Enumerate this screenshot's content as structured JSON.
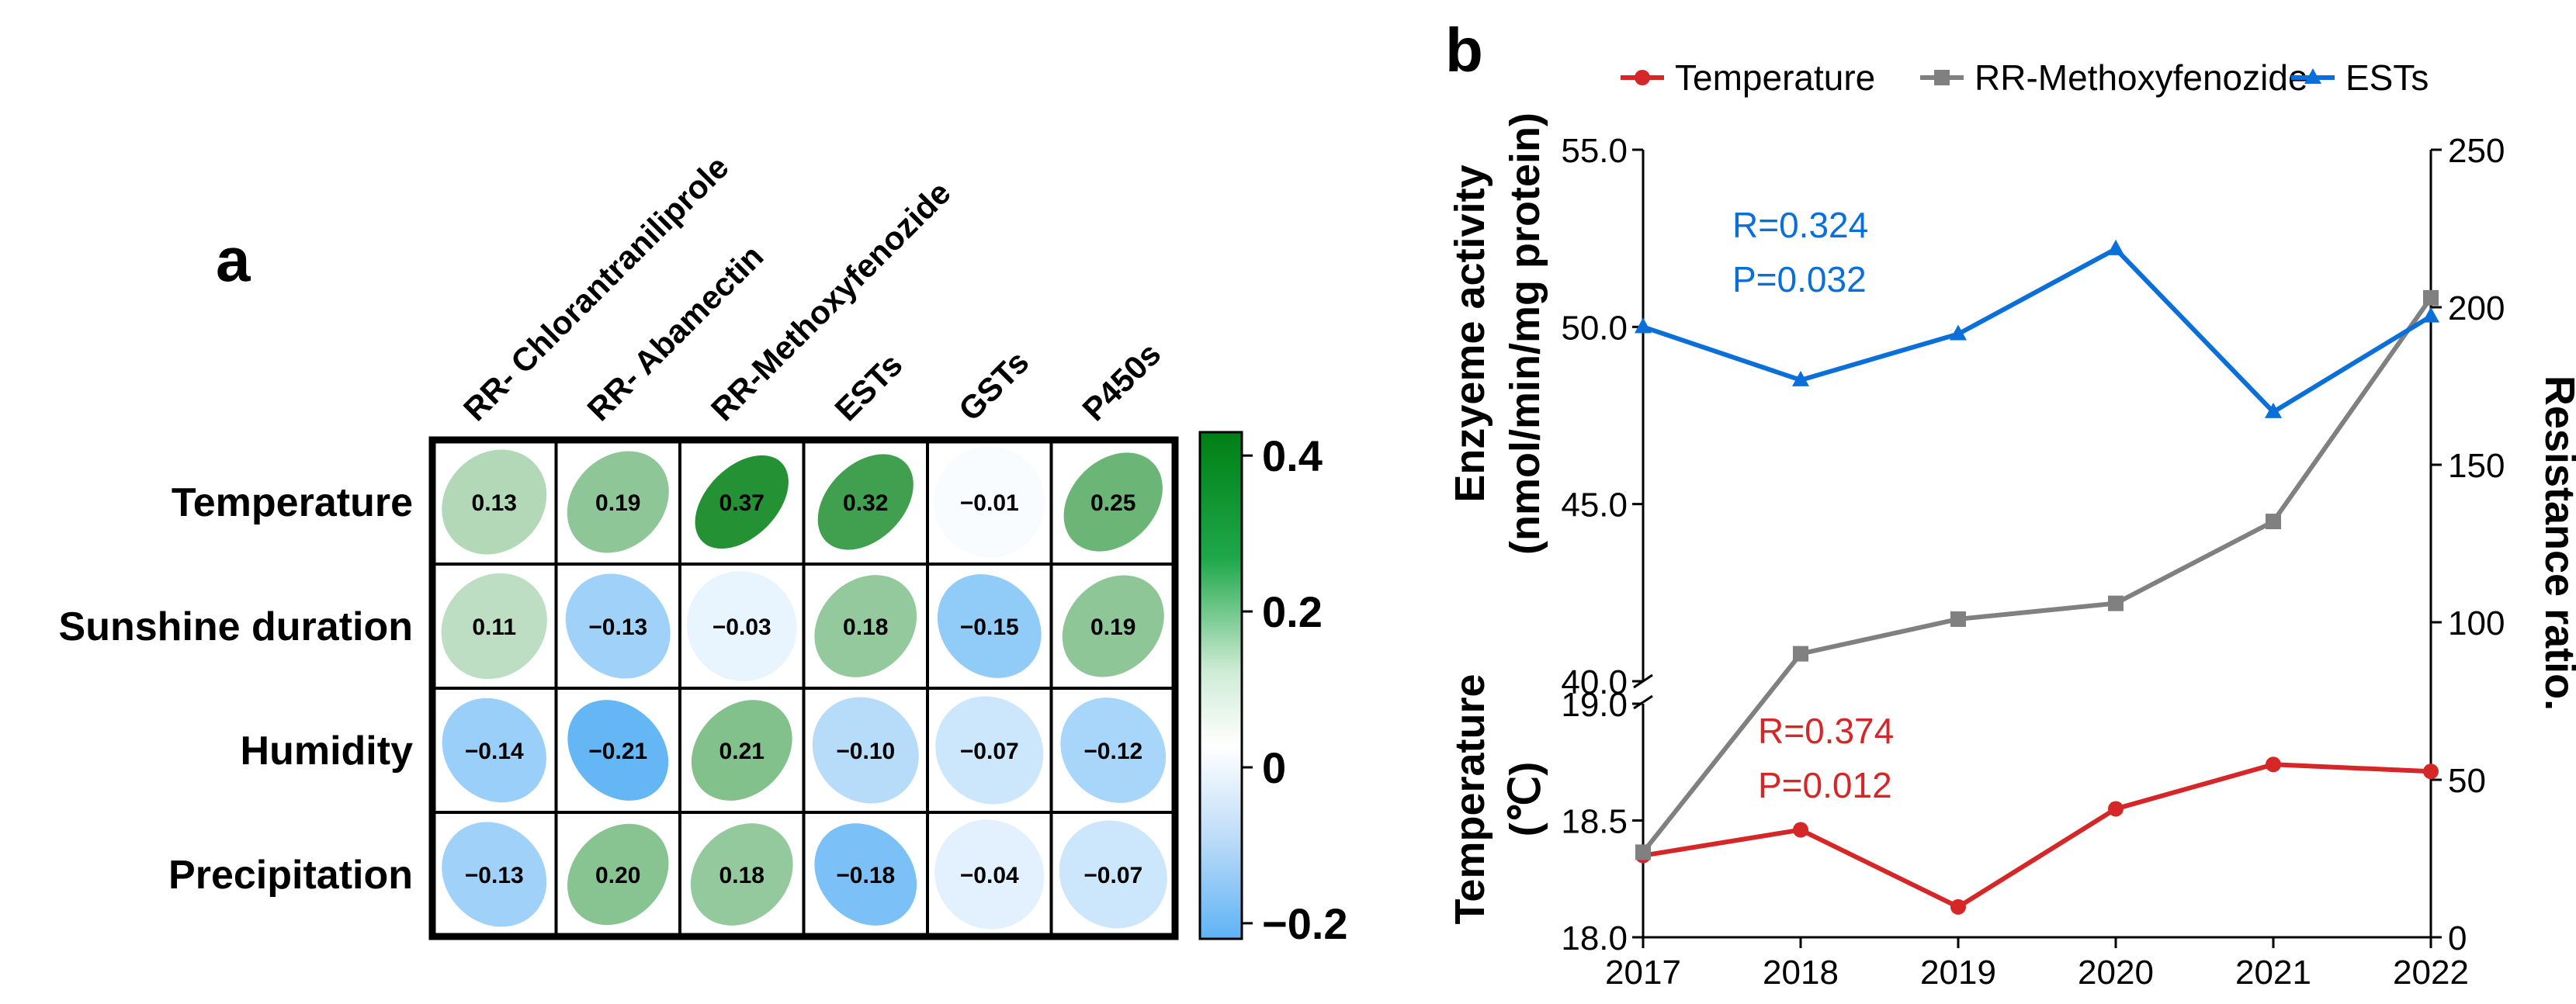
{
  "panel_labels": {
    "a": "a",
    "b": "b"
  },
  "chart_data": [
    {
      "type": "heatmap",
      "panel": "a",
      "title": "",
      "columns": [
        "RR- Chlorantraniliprole",
        "RR- Abamectin",
        "RR-Methoxyfenozide",
        "ESTs",
        "GSTs",
        "P450s"
      ],
      "rows": [
        "Temperature",
        "Sunshine duration",
        "Humidity",
        "Precipitation"
      ],
      "values": [
        [
          0.13,
          0.19,
          0.37,
          0.32,
          -0.01,
          0.25
        ],
        [
          0.11,
          -0.13,
          -0.03,
          0.18,
          -0.15,
          0.19
        ],
        [
          -0.14,
          -0.21,
          0.21,
          -0.1,
          -0.07,
          -0.12
        ],
        [
          -0.13,
          0.2,
          0.18,
          -0.18,
          -0.04,
          -0.07
        ]
      ],
      "cell_labels": [
        [
          "0.13",
          "0.19",
          "0.37",
          "0.32",
          "−0.01",
          "0.25"
        ],
        [
          "0.11",
          "−0.13",
          "−0.03",
          "0.18",
          "−0.15",
          "0.19"
        ],
        [
          "−0.14",
          "−0.21",
          "0.21",
          "−0.10",
          "−0.07",
          "−0.12"
        ],
        [
          "−0.13",
          "0.20",
          "0.18",
          "−0.18",
          "−0.04",
          "−0.07"
        ]
      ],
      "colorbar": {
        "range": [
          -0.22,
          0.43
        ],
        "ticks": [
          0.4,
          0.2,
          0,
          -0.2
        ],
        "tick_labels": [
          "0.4",
          "0.2",
          "0",
          "−0.2"
        ],
        "colors": {
          "positive": "#007f14",
          "zero": "#ffffff",
          "negative": "#5eb3f5"
        }
      }
    },
    {
      "type": "line",
      "panel": "b",
      "title": "",
      "x": [
        2017,
        2018,
        2019,
        2020,
        2021,
        2022
      ],
      "x_tick_labels": [
        "2017",
        "2018",
        "2019",
        "2020",
        "2021",
        "2022"
      ],
      "legend_position": "top",
      "series": [
        {
          "name": "Temperature",
          "axis": "left-lower",
          "color": "#d62728",
          "marker": "circle",
          "values": [
            18.35,
            18.46,
            18.13,
            18.55,
            18.74,
            18.71
          ]
        },
        {
          "name": "RR-Methoxyfenozide",
          "axis": "right",
          "color": "#808080",
          "marker": "square",
          "values": [
            27,
            90,
            101,
            106,
            132,
            203
          ]
        },
        {
          "name": "ESTs",
          "axis": "left-upper",
          "color": "#0a6fd8",
          "marker": "triangle",
          "values": [
            50.0,
            48.5,
            49.8,
            52.2,
            47.6,
            50.3
          ]
        }
      ],
      "axes": {
        "left_upper": {
          "label_line1": "Enzyeme activity",
          "label_line2": "(nmol/min/mg protein)",
          "range": [
            40.0,
            55.0
          ],
          "ticks": [
            "55.0",
            "50.0",
            "45.0",
            "40.0"
          ]
        },
        "left_lower": {
          "label_line1": "Temperature",
          "label_line2": "(℃)",
          "range": [
            18.0,
            19.0
          ],
          "ticks": [
            "19.0",
            "18.5",
            "18.0"
          ]
        },
        "right": {
          "label": "Resistance ratio.",
          "range": [
            0,
            250
          ],
          "ticks": [
            "250",
            "200",
            "150",
            "100",
            "50",
            "0"
          ]
        }
      },
      "annotations": [
        {
          "series": "ESTs",
          "lines": [
            "R=0.324",
            "P=0.032"
          ],
          "color": "#0a6fd8"
        },
        {
          "series": "Temperature",
          "lines": [
            "R=0.374",
            "P=0.012"
          ],
          "color": "#d62728"
        }
      ]
    }
  ]
}
